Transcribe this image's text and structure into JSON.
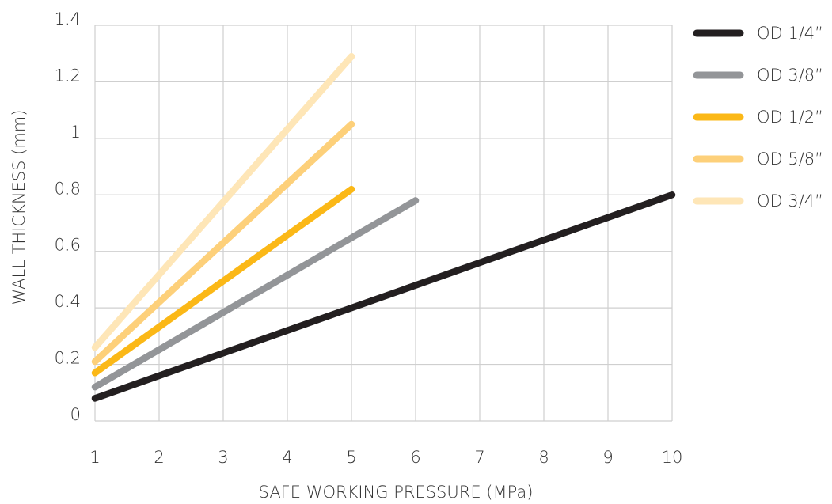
{
  "chart_data": {
    "type": "line",
    "title": "",
    "xlabel": "SAFE WORKING PRESSURE (MPa)",
    "ylabel": "WALL THICKNESS (mm)",
    "xlim": [
      1,
      10
    ],
    "ylim": [
      0,
      1.4
    ],
    "x_ticks": [
      "1",
      "2",
      "3",
      "4",
      "5",
      "6",
      "7",
      "8",
      "9",
      "10"
    ],
    "y_ticks": [
      "0",
      "0.2",
      "0.4",
      "0.6",
      "0.8",
      "1",
      "1.2",
      "1.4"
    ],
    "grid": true,
    "legend_position": "right",
    "series": [
      {
        "name": "OD 1/4”",
        "color": "#231f20",
        "x": [
          1,
          10
        ],
        "y": [
          0.08,
          0.8
        ]
      },
      {
        "name": "OD 3/8”",
        "color": "#939598",
        "x": [
          1,
          6
        ],
        "y": [
          0.12,
          0.78
        ]
      },
      {
        "name": "OD 1/2”",
        "color": "#fbb817",
        "x": [
          1,
          5
        ],
        "y": [
          0.17,
          0.82
        ]
      },
      {
        "name": "OD 5/8”",
        "color": "#fdd07a",
        "x": [
          1,
          5
        ],
        "y": [
          0.21,
          1.05
        ]
      },
      {
        "name": "OD 3/4”",
        "color": "#fee6b7",
        "x": [
          1,
          5
        ],
        "y": [
          0.26,
          1.29
        ]
      }
    ]
  }
}
